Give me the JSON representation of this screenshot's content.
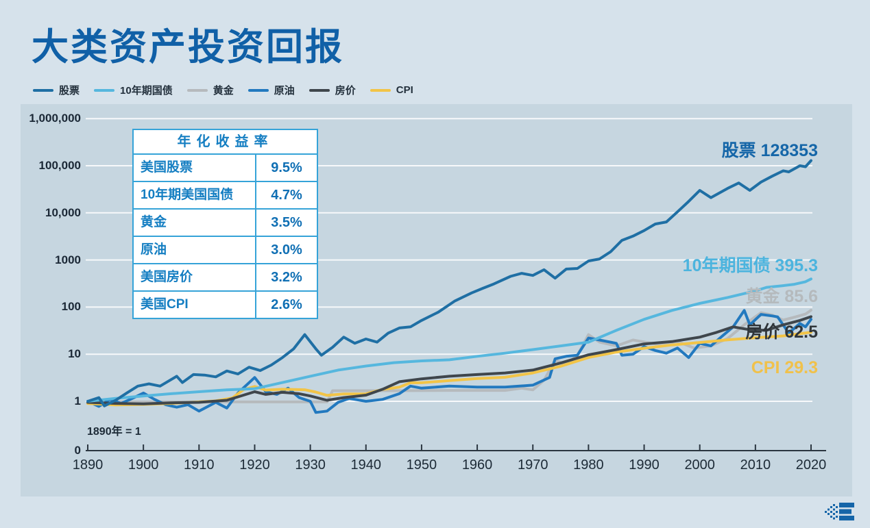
{
  "page": {
    "title": "大类资产投资回报",
    "background": "#d6e2eb",
    "panel_background": "#c6d6e0",
    "accent_color": "#1060a7"
  },
  "legend": {
    "items": [
      {
        "label": "股票",
        "color": "#1f6fa4"
      },
      {
        "label": "10年期国债",
        "color": "#56b7de"
      },
      {
        "label": "黄金",
        "color": "#b6babd"
      },
      {
        "label": "原油",
        "color": "#2279bf"
      },
      {
        "label": "房价",
        "color": "#3f464c"
      },
      {
        "label": "CPI",
        "color": "#f2c447"
      }
    ]
  },
  "table": {
    "title": "年化收益率",
    "rows": [
      {
        "label": "美国股票",
        "value": "9.5%"
      },
      {
        "label": "10年期美国国债",
        "value": "4.7%"
      },
      {
        "label": "黄金",
        "value": "3.5%"
      },
      {
        "label": "原油",
        "value": "3.0%"
      },
      {
        "label": "美国房价",
        "value": "3.2%"
      },
      {
        "label": "美国CPI",
        "value": "2.6%"
      }
    ]
  },
  "chart_data": {
    "type": "line",
    "y_scale": "log",
    "grid": true,
    "x_range": [
      1890,
      2020
    ],
    "x_ticks": [
      1890,
      1900,
      1910,
      1920,
      1930,
      1940,
      1950,
      1960,
      1970,
      1980,
      1990,
      2000,
      2010,
      2020
    ],
    "y_ticks": [
      {
        "value": 1000000,
        "label": "1,000,000"
      },
      {
        "value": 100000,
        "label": "100,000"
      },
      {
        "value": 10000,
        "label": "10,000"
      },
      {
        "value": 1000,
        "label": "1000"
      },
      {
        "value": 100,
        "label": "100"
      },
      {
        "value": 10,
        "label": "10"
      },
      {
        "value": 1,
        "label": "1"
      }
    ],
    "zero_label": "0",
    "baseline_note": "1890年 = 1",
    "gridline_color": "rgba(255,255,255,0.85)",
    "axis_color": "#2b3640",
    "series": [
      {
        "name": "黄金",
        "color": "#b6babd",
        "points": [
          [
            1890,
            0.97
          ],
          [
            1900,
            0.97
          ],
          [
            1910,
            0.97
          ],
          [
            1920,
            0.97
          ],
          [
            1930,
            0.97
          ],
          [
            1933,
            0.97
          ],
          [
            1934,
            1.68
          ],
          [
            1945,
            1.68
          ],
          [
            1955,
            1.7
          ],
          [
            1965,
            1.7
          ],
          [
            1968,
            1.9
          ],
          [
            1970,
            1.75
          ],
          [
            1972,
            2.8
          ],
          [
            1974,
            7.5
          ],
          [
            1976,
            6
          ],
          [
            1978,
            9.5
          ],
          [
            1980,
            26
          ],
          [
            1982,
            18
          ],
          [
            1985,
            15
          ],
          [
            1988,
            20
          ],
          [
            1992,
            16.5
          ],
          [
            1996,
            18.5
          ],
          [
            1999,
            13.5
          ],
          [
            2002,
            15
          ],
          [
            2005,
            21.5
          ],
          [
            2008,
            42
          ],
          [
            2011,
            76
          ],
          [
            2013,
            68
          ],
          [
            2015,
            53
          ],
          [
            2017,
            61
          ],
          [
            2019,
            71
          ],
          [
            2020,
            85.6
          ]
        ]
      },
      {
        "name": "原油",
        "color": "#2279bf",
        "points": [
          [
            1890,
            1
          ],
          [
            1892,
            0.78
          ],
          [
            1894,
            1.1
          ],
          [
            1896,
            0.9
          ],
          [
            1898,
            1.15
          ],
          [
            1900,
            1.5
          ],
          [
            1902,
            1.1
          ],
          [
            1904,
            0.85
          ],
          [
            1906,
            0.75
          ],
          [
            1908,
            0.85
          ],
          [
            1910,
            0.62
          ],
          [
            1913,
            0.95
          ],
          [
            1915,
            0.72
          ],
          [
            1917,
            1.5
          ],
          [
            1920,
            3.2
          ],
          [
            1922,
            1.6
          ],
          [
            1924,
            1.4
          ],
          [
            1926,
            1.9
          ],
          [
            1928,
            1.2
          ],
          [
            1930,
            1.0
          ],
          [
            1931,
            0.58
          ],
          [
            1933,
            0.62
          ],
          [
            1935,
            0.95
          ],
          [
            1937,
            1.15
          ],
          [
            1940,
            1.0
          ],
          [
            1943,
            1.1
          ],
          [
            1946,
            1.45
          ],
          [
            1948,
            2.1
          ],
          [
            1950,
            1.9
          ],
          [
            1955,
            2.1
          ],
          [
            1960,
            2.0
          ],
          [
            1965,
            2.0
          ],
          [
            1970,
            2.2
          ],
          [
            1973,
            3.2
          ],
          [
            1974,
            8
          ],
          [
            1976,
            9
          ],
          [
            1978,
            9.5
          ],
          [
            1980,
            22
          ],
          [
            1982,
            20
          ],
          [
            1985,
            17
          ],
          [
            1986,
            9.5
          ],
          [
            1988,
            10
          ],
          [
            1990,
            14.5
          ],
          [
            1992,
            12
          ],
          [
            1994,
            10.5
          ],
          [
            1996,
            13.5
          ],
          [
            1998,
            8.5
          ],
          [
            2000,
            17
          ],
          [
            2002,
            15
          ],
          [
            2004,
            24
          ],
          [
            2006,
            38
          ],
          [
            2008,
            85
          ],
          [
            2009,
            42
          ],
          [
            2011,
            70
          ],
          [
            2013,
            65
          ],
          [
            2014,
            62
          ],
          [
            2016,
            28
          ],
          [
            2018,
            45
          ],
          [
            2019,
            38
          ],
          [
            2020,
            55
          ]
        ]
      },
      {
        "name": "CPI",
        "color": "#f2c447",
        "points": [
          [
            1890,
            0.9
          ],
          [
            1895,
            0.84
          ],
          [
            1900,
            0.86
          ],
          [
            1905,
            0.9
          ],
          [
            1910,
            0.97
          ],
          [
            1913,
            1.02
          ],
          [
            1916,
            1.18
          ],
          [
            1918,
            1.77
          ],
          [
            1920,
            2.06
          ],
          [
            1922,
            1.73
          ],
          [
            1925,
            1.8
          ],
          [
            1929,
            1.76
          ],
          [
            1931,
            1.57
          ],
          [
            1933,
            1.34
          ],
          [
            1936,
            1.43
          ],
          [
            1940,
            1.44
          ],
          [
            1943,
            1.79
          ],
          [
            1946,
            2.0
          ],
          [
            1948,
            2.48
          ],
          [
            1950,
            2.48
          ],
          [
            1955,
            2.75
          ],
          [
            1960,
            3.05
          ],
          [
            1965,
            3.24
          ],
          [
            1970,
            4.0
          ],
          [
            1975,
            5.54
          ],
          [
            1980,
            8.5
          ],
          [
            1985,
            11.1
          ],
          [
            1990,
            13.4
          ],
          [
            1995,
            15.7
          ],
          [
            2000,
            17.7
          ],
          [
            2005,
            20.1
          ],
          [
            2010,
            22.4
          ],
          [
            2015,
            24.4
          ],
          [
            2020,
            29.3
          ]
        ]
      },
      {
        "name": "房价",
        "color": "#3f464c",
        "points": [
          [
            1890,
            0.95
          ],
          [
            1895,
            0.9
          ],
          [
            1900,
            0.88
          ],
          [
            1905,
            0.93
          ],
          [
            1910,
            0.95
          ],
          [
            1915,
            1.05
          ],
          [
            1918,
            1.35
          ],
          [
            1920,
            1.6
          ],
          [
            1922,
            1.4
          ],
          [
            1925,
            1.55
          ],
          [
            1928,
            1.45
          ],
          [
            1930,
            1.3
          ],
          [
            1933,
            1.05
          ],
          [
            1936,
            1.2
          ],
          [
            1940,
            1.35
          ],
          [
            1943,
            1.8
          ],
          [
            1946,
            2.6
          ],
          [
            1950,
            3.0
          ],
          [
            1955,
            3.4
          ],
          [
            1960,
            3.7
          ],
          [
            1965,
            4.0
          ],
          [
            1970,
            4.6
          ],
          [
            1975,
            6.5
          ],
          [
            1980,
            9.7
          ],
          [
            1985,
            12.5
          ],
          [
            1990,
            16.5
          ],
          [
            1995,
            18.5
          ],
          [
            2000,
            23
          ],
          [
            2003,
            29
          ],
          [
            2006,
            38
          ],
          [
            2009,
            33
          ],
          [
            2012,
            32
          ],
          [
            2015,
            42
          ],
          [
            2018,
            52
          ],
          [
            2020,
            62.5
          ]
        ]
      },
      {
        "name": "10年期国债",
        "color": "#56b7de",
        "points": [
          [
            1890,
            1
          ],
          [
            1895,
            1.15
          ],
          [
            1900,
            1.3
          ],
          [
            1905,
            1.45
          ],
          [
            1910,
            1.6
          ],
          [
            1915,
            1.75
          ],
          [
            1920,
            1.85
          ],
          [
            1925,
            2.5
          ],
          [
            1930,
            3.4
          ],
          [
            1935,
            4.6
          ],
          [
            1940,
            5.6
          ],
          [
            1945,
            6.6
          ],
          [
            1950,
            7.2
          ],
          [
            1955,
            7.6
          ],
          [
            1960,
            9
          ],
          [
            1965,
            10.5
          ],
          [
            1970,
            12.5
          ],
          [
            1975,
            15
          ],
          [
            1980,
            18
          ],
          [
            1985,
            32
          ],
          [
            1990,
            55
          ],
          [
            1995,
            85
          ],
          [
            2000,
            120
          ],
          [
            2005,
            160
          ],
          [
            2010,
            220
          ],
          [
            2012,
            262
          ],
          [
            2015,
            285
          ],
          [
            2017,
            305
          ],
          [
            2019,
            345
          ],
          [
            2020,
            395.3
          ]
        ]
      },
      {
        "name": "股票",
        "color": "#1f6fa4",
        "points": [
          [
            1890,
            1
          ],
          [
            1892,
            1.2
          ],
          [
            1893,
            0.8
          ],
          [
            1895,
            1.05
          ],
          [
            1897,
            1.5
          ],
          [
            1899,
            2.1
          ],
          [
            1901,
            2.35
          ],
          [
            1903,
            2.1
          ],
          [
            1906,
            3.4
          ],
          [
            1907,
            2.5
          ],
          [
            1909,
            3.7
          ],
          [
            1911,
            3.6
          ],
          [
            1913,
            3.3
          ],
          [
            1915,
            4.4
          ],
          [
            1917,
            3.8
          ],
          [
            1919,
            5.3
          ],
          [
            1921,
            4.5
          ],
          [
            1923,
            5.9
          ],
          [
            1925,
            8.5
          ],
          [
            1927,
            13
          ],
          [
            1929,
            26
          ],
          [
            1931,
            13
          ],
          [
            1932,
            9.5
          ],
          [
            1934,
            14
          ],
          [
            1936,
            23
          ],
          [
            1938,
            17
          ],
          [
            1940,
            21
          ],
          [
            1942,
            18
          ],
          [
            1944,
            28
          ],
          [
            1946,
            36
          ],
          [
            1948,
            38
          ],
          [
            1950,
            52
          ],
          [
            1953,
            78
          ],
          [
            1956,
            135
          ],
          [
            1959,
            200
          ],
          [
            1961,
            250
          ],
          [
            1963,
            310
          ],
          [
            1966,
            450
          ],
          [
            1968,
            520
          ],
          [
            1970,
            470
          ],
          [
            1972,
            620
          ],
          [
            1974,
            410
          ],
          [
            1976,
            640
          ],
          [
            1978,
            660
          ],
          [
            1980,
            950
          ],
          [
            1982,
            1050
          ],
          [
            1984,
            1500
          ],
          [
            1986,
            2600
          ],
          [
            1988,
            3200
          ],
          [
            1990,
            4200
          ],
          [
            1992,
            5800
          ],
          [
            1994,
            6400
          ],
          [
            1996,
            10500
          ],
          [
            1998,
            17500
          ],
          [
            2000,
            30000
          ],
          [
            2002,
            21000
          ],
          [
            2005,
            33000
          ],
          [
            2007,
            43000
          ],
          [
            2009,
            30000
          ],
          [
            2011,
            45000
          ],
          [
            2013,
            60000
          ],
          [
            2015,
            78000
          ],
          [
            2016,
            74000
          ],
          [
            2018,
            100000
          ],
          [
            2019,
            95000
          ],
          [
            2020,
            128353
          ]
        ]
      }
    ],
    "end_labels": [
      {
        "label": "股票",
        "value": "128353",
        "anchor": 128353,
        "color": "#1566a8"
      },
      {
        "label": "10年期国债",
        "value": "395.3",
        "anchor": 395.3,
        "color": "#4cb4de"
      },
      {
        "label": "黄金",
        "value": "85.6",
        "anchor": 85.6,
        "color": "#b5babd"
      },
      {
        "label": "房价",
        "value": "62.5",
        "anchor": 62.5,
        "color": "#2f353a"
      },
      {
        "label": "CPI",
        "value": "29.3",
        "anchor": 29.3,
        "color": "#f0c14b"
      }
    ]
  },
  "footer": {
    "logo_icon": "e-pixel-brand-logo",
    "logo_color": "#1565a8"
  }
}
